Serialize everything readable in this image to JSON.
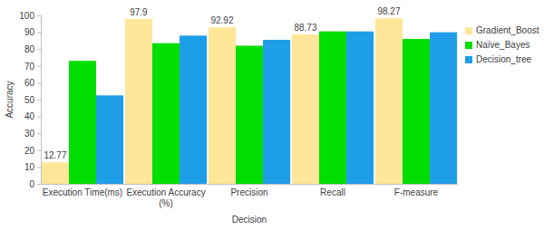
{
  "chart_data": {
    "type": "bar",
    "x_label": "Decision",
    "y_label": "Accuracy",
    "categories": [
      "Execution Time(ms)",
      "Execution Accuracy (%)",
      "Precision",
      "Recall",
      "F-measure"
    ],
    "series": [
      {
        "name": "Gradient_Boost",
        "color": "#ffe699",
        "values": [
          12.77,
          97.9,
          92.92,
          88.73,
          98.27
        ],
        "data_labels": true
      },
      {
        "name": "Naïve_Bayes",
        "color": "#00dd00",
        "values": [
          73,
          83.5,
          82,
          90.5,
          86
        ]
      },
      {
        "name": "Decision_tree",
        "color": "#1f9ee8",
        "values": [
          52.5,
          88,
          85.5,
          90.5,
          90
        ]
      }
    ],
    "ylim": [
      0,
      100
    ],
    "yticks": [
      0,
      10,
      20,
      30,
      40,
      50,
      60,
      70,
      80,
      90,
      100
    ],
    "grid": false,
    "legend": "right"
  }
}
